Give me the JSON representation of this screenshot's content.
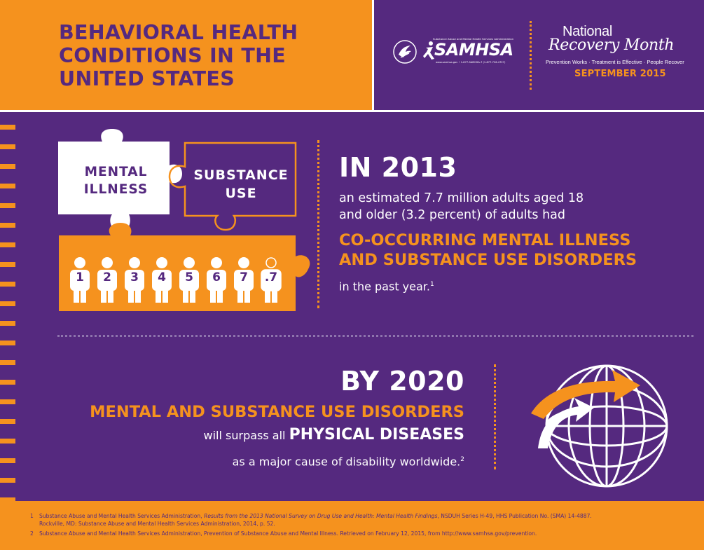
{
  "header": {
    "title_lines": [
      "BEHAVIORAL HEALTH",
      "CONDITIONS IN THE",
      "UNITED STATES"
    ],
    "samhsa": {
      "tagline": "Substance Abuse and Mental Health Services Administration",
      "name": "SAMHSA",
      "contact": "www.samhsa.gov • 1-877-SAMHSA-7 (1-877-726-4727)"
    },
    "recovery_month": {
      "line1": "National",
      "line2": "Recovery Month",
      "tagline": "Prevention Works · Treatment is Effective · People Recover",
      "date": "SEPTEMBER 2015"
    }
  },
  "puzzle": {
    "piece1": [
      "MENTAL",
      "ILLNESS"
    ],
    "piece2": [
      "SUBSTANCE",
      "USE"
    ],
    "people": [
      "1",
      "2",
      "3",
      "4",
      "5",
      "6",
      "7",
      ".7"
    ]
  },
  "stat2013": {
    "heading": "IN 2013",
    "line1": "an estimated 7.7 million adults aged 18",
    "line2": "and older (3.2 percent) of adults had",
    "highlight1": "CO-OCCURRING MENTAL ILLNESS",
    "highlight2": "AND SUBSTANCE USE DISORDERS",
    "tail": "in the past year.",
    "footnote_ref": "1"
  },
  "stat2020": {
    "heading": "BY 2020",
    "highlight": "MENTAL AND SUBSTANCE USE DISORDERS",
    "line2_pre": "will surpass all ",
    "line2_big": "PHYSICAL DISEASES",
    "line3": "as a major cause of disability worldwide.",
    "footnote_ref": "2"
  },
  "footnotes": {
    "n1_num": "1",
    "n1_pre": "Substance Abuse and Mental Health Services Administration, ",
    "n1_italic": "Results from the 2013 National Survey on Drug Use and Health: Mental Health Findings",
    "n1_post": ", NSDUH Series H-49, HHS Publication No. (SMA) 14-4887.",
    "n1_line2": "Rockville, MD: Substance Abuse and Mental Health Services Administration, 2014, p. 52.",
    "n2_num": "2",
    "n2_text": "Substance Abuse and Mental Health Services Administration, Prevention of Substance Abuse and Mental Illness. Retrieved on February 12, 2015, from http://www.samhsa.gov/prevention."
  },
  "colors": {
    "purple": "#55297f",
    "orange": "#f5921e",
    "white": "#ffffff"
  },
  "icons": [
    "hhs-eagle-icon",
    "samhsa-runner-icon",
    "globe-icon",
    "person-icon"
  ]
}
